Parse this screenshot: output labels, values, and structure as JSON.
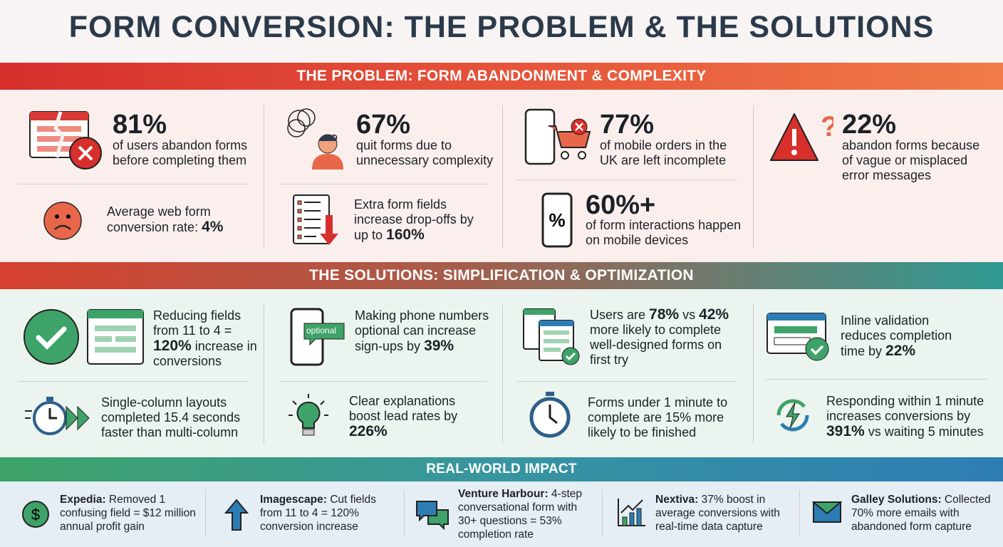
{
  "title": "FORM CONVERSION: THE PROBLEM & THE SOLUTIONS",
  "problem": {
    "heading": "THE PROBLEM: FORM ABANDONMENT & COMPLEXITY",
    "stats": [
      {
        "value": "81%",
        "text": "of users abandon forms before completing them",
        "icon": "broken-form-error-icon"
      },
      {
        "value": "67%",
        "text": "quit forms due to unnecessary complexity",
        "icon": "confused-person-icon"
      },
      {
        "value": "77%",
        "text": "of mobile orders in the UK are left incomplete",
        "icon": "mobile-cart-error-icon"
      },
      {
        "value": "22%",
        "text": "abandon forms because of vague or misplaced error messages",
        "icon": "warning-question-icon"
      },
      {
        "value": "60%+",
        "text": "of form interactions happen on mobile devices",
        "icon": "phone-percent-icon"
      }
    ],
    "facts": [
      {
        "pre": "Average web form conversion rate: ",
        "bold": "4%",
        "icon": "sad-face-icon"
      },
      {
        "pre": "Extra form fields increase drop-offs by up to ",
        "bold": "160%",
        "icon": "list-down-arrow-icon"
      }
    ]
  },
  "solutions": {
    "heading": "THE SOLUTIONS: SIMPLIFICATION & OPTIMIZATION",
    "items": [
      {
        "pre": "Reducing fields from 11 to 4 = ",
        "bold": "120%",
        "post": " increase in conversions",
        "icon": "checkmark-form-icon"
      },
      {
        "pre": "Making phone numbers optional can increase sign-ups by ",
        "bold": "39%",
        "post": "",
        "icon": "phone-optional-icon",
        "badge": "optional"
      },
      {
        "pre": "Users are ",
        "bold": "78%",
        "mid": " vs ",
        "bold2": "42%",
        "post": " more likely to complete well-designed forms on first try",
        "icon": "forms-check-icon"
      },
      {
        "pre": "Inline validation reduces completion time by ",
        "bold": "22%",
        "post": "",
        "icon": "inline-validation-icon"
      },
      {
        "pre": "Single-column layouts completed 15.4 seconds faster than multi-column",
        "icon": "stopwatch-fast-icon"
      },
      {
        "pre": "Clear explanations boost lead rates by ",
        "bold": "226%",
        "icon": "lightbulb-icon"
      },
      {
        "pre": "Forms under 1 minute to complete are 15% more likely to be finished",
        "icon": "stopwatch-icon"
      },
      {
        "pre": "Responding within 1 minute increases conversions by ",
        "bold": "391%",
        "post": " vs waiting 5 minutes",
        "icon": "refresh-bolt-icon"
      }
    ]
  },
  "impact": {
    "heading": "REAL-WORLD IMPACT",
    "items": [
      {
        "name": "Expedia:",
        "text": " Removed 1 confusing field = $12 million annual profit gain",
        "icon": "dollar-icon"
      },
      {
        "name": "Imagescape:",
        "text": " Cut fields from 11 to 4 = 120% conversion increase",
        "icon": "up-arrow-icon"
      },
      {
        "name": "Venture Harbour:",
        "text": " 4-step conversational form with 30+ questions = 53% completion rate",
        "icon": "chat-bubbles-icon"
      },
      {
        "name": "Nextiva:",
        "text": " 37% boost in average conversions with real-time data capture",
        "icon": "bar-chart-up-icon"
      },
      {
        "name": "Galley Solutions:",
        "text": " Collected 70% more emails with abandoned form capture",
        "icon": "envelope-icon"
      }
    ]
  },
  "colors": {
    "red": "#d62f2c",
    "orange": "#f07b48",
    "teal": "#2f9b94",
    "green": "#3ea368",
    "blue": "#2d7db4",
    "navy": "#2b3a4b"
  }
}
